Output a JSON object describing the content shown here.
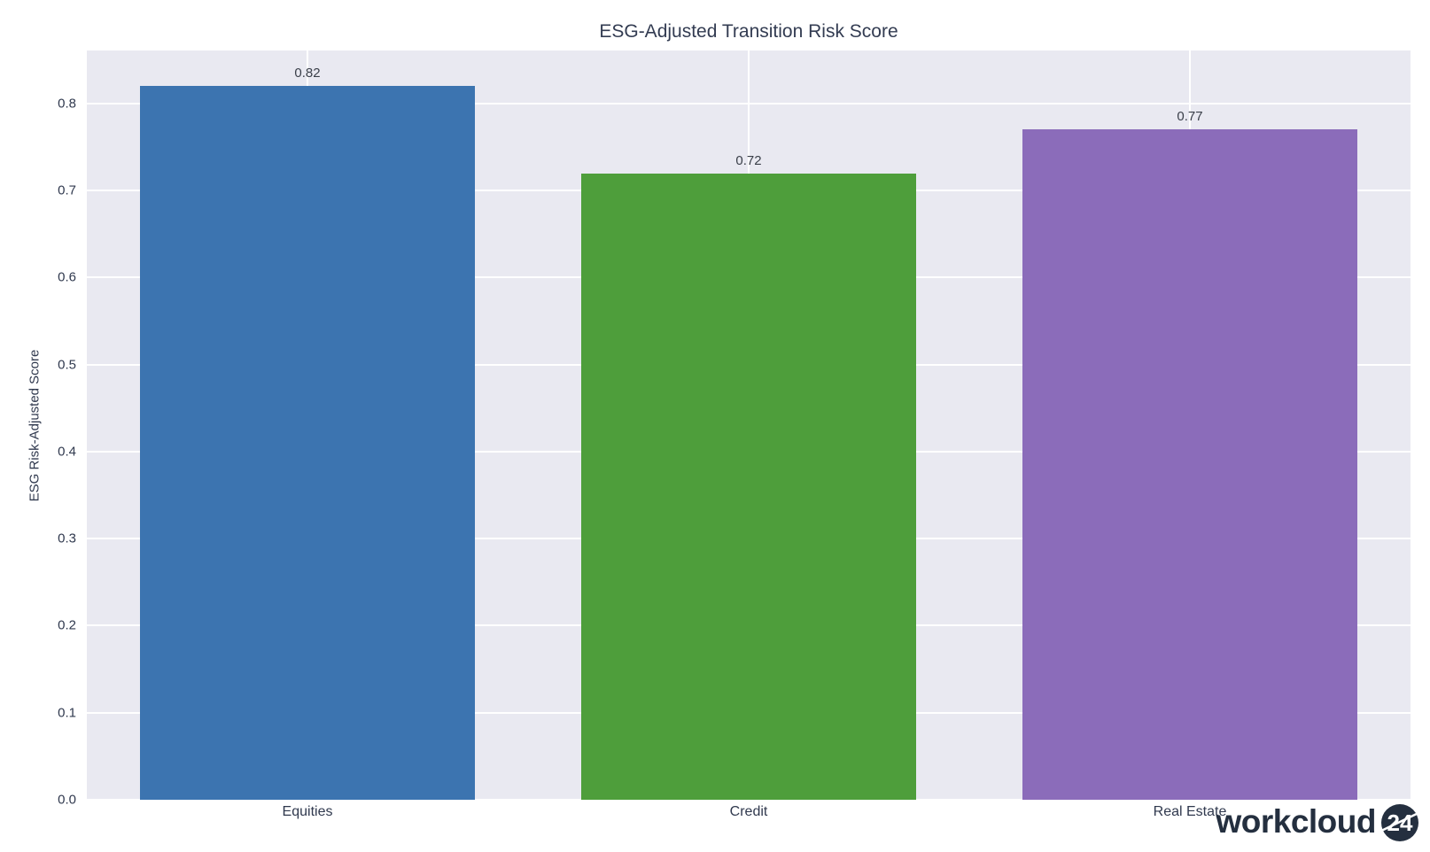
{
  "chart_data": {
    "type": "bar",
    "title": "ESG-Adjusted Transition Risk Score",
    "categories": [
      "Equities",
      "Credit",
      "Real Estate"
    ],
    "values": [
      0.82,
      0.72,
      0.77
    ],
    "value_labels": [
      "0.82",
      "0.72",
      "0.77"
    ],
    "bar_colors": [
      "#3c74b0",
      "#4e9e3b",
      "#8b6cba"
    ],
    "xlabel": "",
    "ylabel": "ESG Risk-Adjusted Score",
    "ylim": [
      0,
      0.861
    ],
    "yticks": [
      0.0,
      0.1,
      0.2,
      0.3,
      0.4,
      0.5,
      0.6,
      0.7,
      0.8
    ],
    "ytick_labels": [
      "0.0",
      "0.1",
      "0.2",
      "0.3",
      "0.4",
      "0.5",
      "0.6",
      "0.7",
      "0.8"
    ],
    "grid": true,
    "legend": false,
    "plot_background": "#e9e9f1",
    "grid_color": "#ffffff"
  },
  "branding": {
    "logo_text": "workcloud",
    "logo_badge": "24",
    "logo_color": "#242f3f"
  }
}
